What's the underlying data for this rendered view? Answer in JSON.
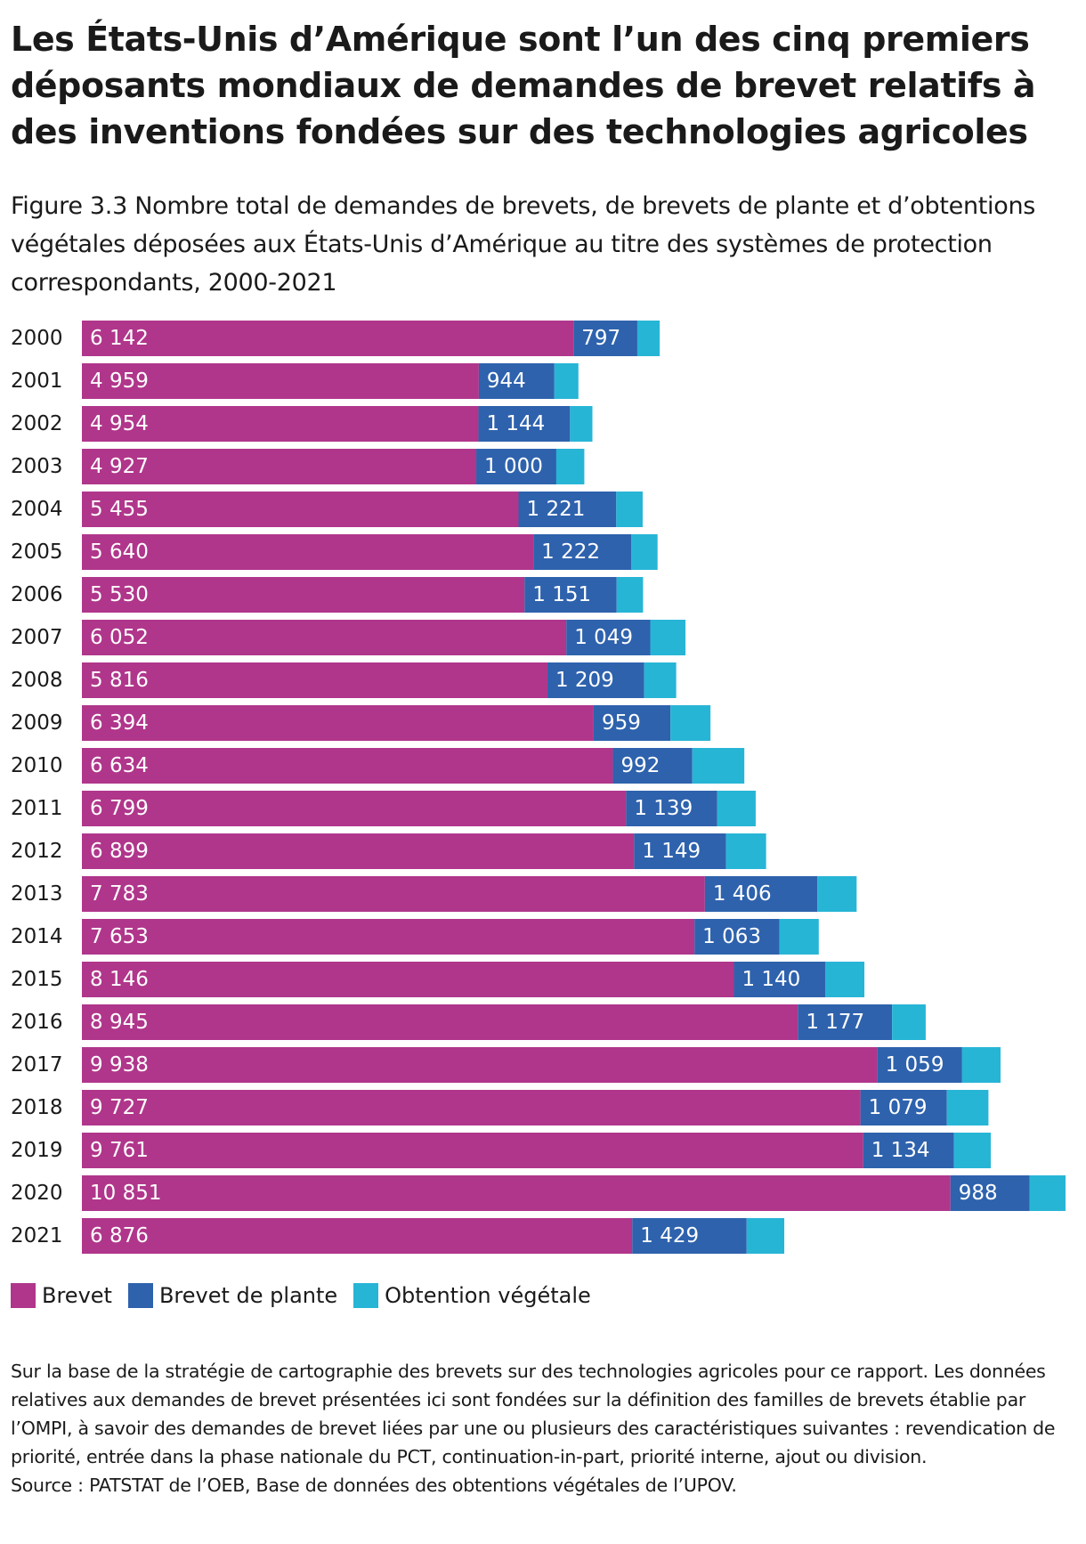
{
  "title": "Les États-Unis d’Amérique sont l’un des cinq premiers déposants mondiaux de demandes de brevet relatifs à des inventions fondées sur des technologies agricoles",
  "subtitle": "Figure 3.3 Nombre total de demandes de brevets, de brevets de plante et d’obtentions végétales déposées aux États-Unis d’Amérique au titre des systèmes de protection correspondants, 2000-2021",
  "colors": {
    "brevet": "#b0368b",
    "brevet_de_plante": "#2e62ad",
    "obtention_vegetale": "#27b5d6"
  },
  "chart_data": {
    "type": "bar",
    "orientation": "horizontal",
    "stacked": true,
    "categories": [
      "2000",
      "2001",
      "2002",
      "2003",
      "2004",
      "2005",
      "2006",
      "2007",
      "2008",
      "2009",
      "2010",
      "2011",
      "2012",
      "2013",
      "2014",
      "2015",
      "2016",
      "2017",
      "2018",
      "2019",
      "2020",
      "2021"
    ],
    "series": [
      {
        "name": "Brevet",
        "color": "#b0368b",
        "values": [
          6142,
          4959,
          4954,
          4927,
          5455,
          5640,
          5530,
          6052,
          5816,
          6394,
          6634,
          6799,
          6899,
          7783,
          7653,
          8146,
          8945,
          9938,
          9727,
          9761,
          10851,
          6876
        ],
        "labels": [
          "6 142",
          "4 959",
          "4 954",
          "4 927",
          "5 455",
          "5 640",
          "5 530",
          "6 052",
          "5 816",
          "6 394",
          "6 634",
          "6 799",
          "6 899",
          "7 783",
          "7 653",
          "8 146",
          "8 945",
          "9 938",
          "9 727",
          "9 761",
          "10 851",
          "6 876"
        ]
      },
      {
        "name": "Brevet de plante",
        "color": "#2e62ad",
        "values": [
          797,
          944,
          1144,
          1000,
          1221,
          1222,
          1151,
          1049,
          1209,
          959,
          992,
          1139,
          1149,
          1406,
          1063,
          1140,
          1177,
          1059,
          1079,
          1134,
          988,
          1429
        ],
        "labels": [
          "797",
          "944",
          "1 144",
          "1 000",
          "1 221",
          "1 222",
          "1 151",
          "1 049",
          "1 209",
          "959",
          "992",
          "1 139",
          "1 149",
          "1 406",
          "1 063",
          "1 140",
          "1 177",
          "1 059",
          "1 079",
          "1 134",
          "988",
          "1 429"
        ]
      },
      {
        "name": "Obtention végétale",
        "color": "#27b5d6",
        "values": [
          280,
          300,
          280,
          350,
          330,
          330,
          330,
          440,
          400,
          500,
          650,
          480,
          500,
          490,
          490,
          490,
          420,
          480,
          520,
          460,
          450,
          470
        ]
      }
    ],
    "xlim": [
      0,
      12400
    ],
    "grid": false,
    "legend_position": "bottom-left"
  },
  "legend": [
    {
      "label": "Brevet",
      "color": "#b0368b"
    },
    {
      "label": "Brevet de plante",
      "color": "#2e62ad"
    },
    {
      "label": "Obtention végétale",
      "color": "#27b5d6"
    }
  ],
  "notes": {
    "text": "Sur la base de la stratégie de cartographie des brevets sur des technologies agricoles pour ce rapport. Les données relatives aux demandes de brevet présentées ici sont fondées sur la définition des familles de brevets établie par l’OMPI, à savoir des demandes de brevet liées par une ou plusieurs des caractéristiques suivantes : revendication de priorité, entrée dans la phase nationale du PCT, continuation-in-part, priorité interne, ajout ou division.",
    "source": "Source : PATSTAT de l’OEB, Base de données des obtentions végétales de l’UPOV."
  }
}
